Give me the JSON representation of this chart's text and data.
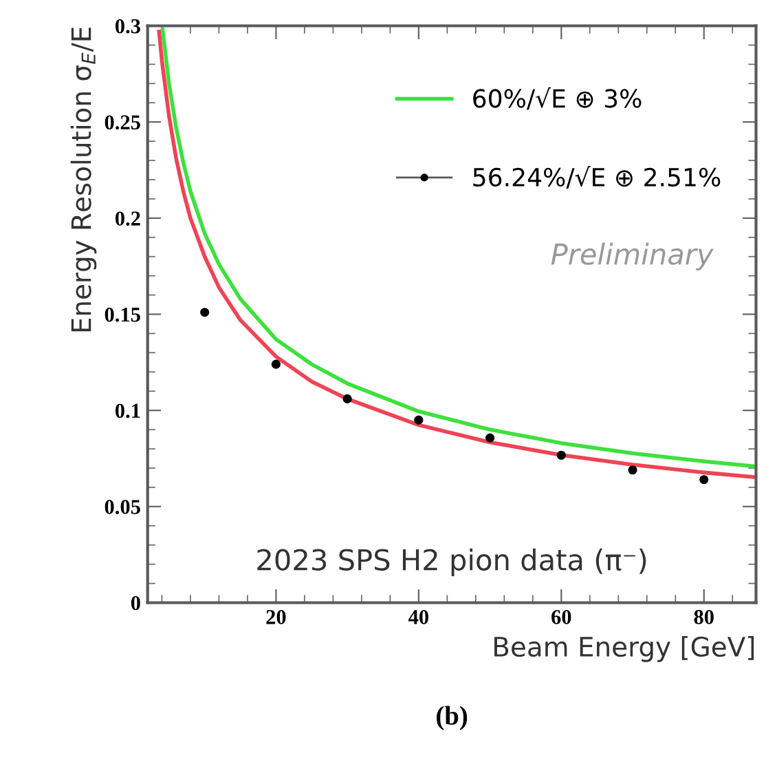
{
  "chart_data": {
    "type": "line",
    "xlabel": "Beam Energy [GeV]",
    "ylabel": "Energy Resolution σ$_{E}$/E",
    "xlim": [
      2,
      87.3
    ],
    "ylim": [
      0,
      0.3
    ],
    "xticks": [
      20,
      40,
      60,
      80
    ],
    "yticks": [
      0,
      0.05,
      0.1,
      0.15,
      0.2,
      0.25,
      0.3
    ],
    "grid": false,
    "legend": "top right",
    "series": [
      {
        "name": "60%/√E ⊕ 3%",
        "type": "line",
        "color": "#3ee03e",
        "marker": "none",
        "line_style": "solid",
        "x": [
          4.1,
          5,
          6,
          7,
          8,
          10,
          12,
          15,
          20,
          25,
          30,
          40,
          50,
          60,
          70,
          80,
          87
        ],
        "values": [
          0.298,
          0.27,
          0.247,
          0.229,
          0.214,
          0.192,
          0.176,
          0.158,
          0.137,
          0.124,
          0.114,
          0.0995,
          0.09,
          0.083,
          0.0777,
          0.0735,
          0.071
        ]
      },
      {
        "color": "#ee4455",
        "marker": "none",
        "line_style": "solid",
        "x": [
          3.6,
          4,
          5,
          6,
          7,
          8,
          10,
          12,
          15,
          20,
          25,
          30,
          40,
          50,
          60,
          70,
          80,
          87
        ],
        "values": [
          0.297,
          0.282,
          0.253,
          0.231,
          0.214,
          0.2,
          0.18,
          0.164,
          0.147,
          0.128,
          0.115,
          0.106,
          0.0924,
          0.0834,
          0.0768,
          0.0718,
          0.0677,
          0.0653
        ]
      },
      {
        "name": "56.24%/√E ⊕ 2.51%",
        "type": "scatter",
        "color": "#000000",
        "marker": "circle",
        "x": [
          10,
          20,
          30,
          40,
          50,
          60,
          70,
          80
        ],
        "values": [
          0.151,
          0.124,
          0.106,
          0.095,
          0.0857,
          0.0767,
          0.069,
          0.064
        ]
      }
    ],
    "annotations": [
      "Preliminary",
      "2023 SPS H2 pion data (π⁻)",
      "(b)"
    ]
  }
}
